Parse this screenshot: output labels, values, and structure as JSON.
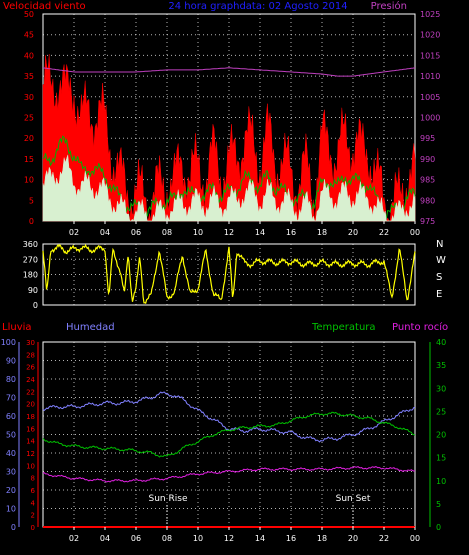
{
  "colors": {
    "background": "#000000",
    "axis": "#ffffff",
    "grid": "#ffffff",
    "wind_speed": "#ff0000",
    "wind_avg": "#00b000",
    "wind_min": "#d8f0d0",
    "pressure": "#c040c0",
    "direction": "#ffff00",
    "rain": "#ff0000",
    "humidity": "#8080ff",
    "temperature": "#00c000",
    "dewpoint": "#e020e0",
    "title": "#2020ff"
  },
  "chart_data": [
    {
      "type": "line",
      "title": "24 hora graphdata: 02 Agosto 2014",
      "left_axis_label": "Velocidad viento",
      "right_axis_label": "Presión",
      "x_ticks": [
        "02",
        "04",
        "06",
        "08",
        "10",
        "12",
        "14",
        "16",
        "18",
        "20",
        "22",
        "00"
      ],
      "xlim": [
        0,
        24
      ],
      "y_left": {
        "ticks": [
          0,
          5,
          10,
          15,
          20,
          25,
          30,
          35,
          40,
          45,
          50
        ],
        "ylim": [
          0,
          50
        ]
      },
      "y_right": {
        "ticks": [
          975,
          980,
          985,
          990,
          995,
          1000,
          1005,
          1010,
          1015,
          1020,
          1025
        ],
        "ylim": [
          975,
          1025
        ]
      },
      "grid": true,
      "series": [
        {
          "name": "Velocidad viento",
          "axis": "left",
          "style": "fill",
          "x": [
            0,
            0.5,
            1,
            1.5,
            2,
            2.5,
            3,
            3.5,
            4,
            4.5,
            5,
            5.5,
            6,
            6.5,
            7,
            7.5,
            8,
            8.5,
            9,
            9.5,
            10,
            10.5,
            11,
            11.5,
            12,
            12.5,
            13,
            13.5,
            14,
            14.5,
            15,
            15.5,
            16,
            16.5,
            17,
            17.5,
            18,
            18.5,
            19,
            19.5,
            20,
            20.5,
            21,
            21.5,
            22,
            22.5,
            23,
            23.5
          ],
          "values": [
            33,
            32,
            35,
            30,
            33,
            24,
            27,
            26,
            24,
            16,
            10,
            8,
            6,
            7,
            5,
            8,
            10,
            9,
            15,
            11,
            13,
            11,
            16,
            12,
            14,
            16,
            20,
            19,
            15,
            21,
            15,
            14,
            12,
            9,
            13,
            7,
            19,
            19,
            15,
            21,
            19,
            17,
            18,
            10,
            6,
            4,
            5,
            12
          ]
        },
        {
          "name": "Velocidad media",
          "axis": "left",
          "style": "line",
          "x": [
            0,
            0.5,
            1,
            1.5,
            2,
            2.5,
            3,
            3.5,
            4,
            4.5,
            5,
            5.5,
            6,
            6.5,
            7,
            7.5,
            8,
            8.5,
            9,
            9.5,
            10,
            10.5,
            11,
            11.5,
            12,
            12.5,
            13,
            13.5,
            14,
            14.5,
            15,
            15.5,
            16,
            16.5,
            17,
            17.5,
            18,
            18.5,
            19,
            19.5,
            20,
            20.5,
            21,
            21.5,
            22,
            22.5,
            23,
            23.5
          ],
          "values": [
            14,
            15,
            18,
            19,
            16,
            12,
            13,
            12,
            11,
            8,
            5,
            4,
            3,
            3,
            3,
            4,
            5,
            5,
            8,
            6,
            7,
            6,
            8,
            6,
            7,
            8,
            10,
            10,
            8,
            11,
            8,
            7,
            6,
            5,
            6,
            4,
            9,
            10,
            8,
            11,
            10,
            9,
            9,
            5,
            3,
            2,
            3,
            6
          ]
        },
        {
          "name": "Velocidad mínima",
          "axis": "left",
          "style": "fill",
          "x": [
            0,
            0.5,
            1,
            1.5,
            2,
            2.5,
            3,
            3.5,
            4,
            4.5,
            5,
            5.5,
            6,
            6.5,
            7,
            7.5,
            8,
            8.5,
            9,
            9.5,
            10,
            10.5,
            11,
            11.5,
            12,
            12.5,
            13,
            13.5,
            14,
            14.5,
            15,
            15.5,
            16,
            16.5,
            17,
            17.5,
            18,
            18.5,
            19,
            19.5,
            20,
            20.5,
            21,
            21.5,
            22,
            22.5,
            23,
            23.5
          ],
          "values": [
            9,
            10,
            12,
            13,
            10,
            8,
            9,
            8,
            7,
            5,
            3,
            2,
            2,
            2,
            1,
            2,
            3,
            3,
            5,
            4,
            5,
            4,
            5,
            4,
            5,
            5,
            7,
            7,
            5,
            7,
            5,
            5,
            4,
            3,
            4,
            2,
            6,
            7,
            5,
            7,
            6,
            6,
            6,
            3,
            2,
            1,
            2,
            4
          ]
        },
        {
          "name": "Presión",
          "axis": "right",
          "style": "line",
          "x": [
            0,
            2,
            4,
            6,
            8,
            10,
            12,
            14,
            16,
            18,
            19,
            20,
            22,
            24
          ],
          "values": [
            1012,
            1011,
            1011,
            1011,
            1011.5,
            1011.5,
            1012,
            1011.5,
            1011,
            1010.5,
            1010,
            1010,
            1011,
            1012
          ]
        }
      ]
    },
    {
      "type": "line",
      "title": "",
      "right_labels": [
        "N",
        "W",
        "S",
        "E",
        "N"
      ],
      "x_ticks": [
        "02",
        "04",
        "06",
        "08",
        "10",
        "12",
        "14",
        "16",
        "18",
        "20",
        "22",
        "00"
      ],
      "xlim": [
        0,
        24
      ],
      "y_left": {
        "ticks": [
          0,
          90,
          180,
          270,
          360
        ],
        "ylim": [
          0,
          360
        ]
      },
      "grid": true,
      "series": [
        {
          "name": "Dirección viento",
          "axis": "left",
          "style": "line",
          "x": [
            0,
            0.25,
            0.5,
            1,
            1.5,
            2,
            2.5,
            3,
            3.5,
            4,
            4.25,
            4.5,
            5,
            5.25,
            5.5,
            5.75,
            6,
            6.25,
            6.5,
            7,
            7.5,
            8,
            8.5,
            9,
            9.5,
            10,
            10.5,
            11,
            11.5,
            12,
            12.25,
            12.5,
            13,
            13.5,
            14,
            15,
            16,
            17,
            18,
            19,
            20,
            21,
            22,
            22.5,
            23,
            23.5,
            24
          ],
          "values": [
            320,
            60,
            330,
            340,
            320,
            330,
            340,
            325,
            330,
            335,
            40,
            320,
            200,
            60,
            300,
            30,
            100,
            280,
            20,
            60,
            330,
            40,
            80,
            300,
            60,
            100,
            320,
            60,
            30,
            330,
            20,
            320,
            250,
            240,
            260,
            250,
            255,
            240,
            250,
            240,
            245,
            240,
            260,
            40,
            330,
            30,
            300
          ]
        }
      ]
    },
    {
      "type": "line",
      "title": "",
      "legend_labels": [
        "Lluvia",
        "Humedad",
        "Temperatura",
        "Punto rocío"
      ],
      "x_ticks": [
        "02",
        "04",
        "06",
        "08",
        "10",
        "12",
        "14",
        "16",
        "18",
        "20",
        "22",
        "00"
      ],
      "xlim": [
        0,
        24
      ],
      "y_left_humidity": {
        "ticks": [
          0,
          10,
          20,
          30,
          40,
          50,
          60,
          70,
          80,
          90,
          100
        ],
        "ylim": [
          0,
          100
        ]
      },
      "y_left_rain": {
        "ticks": [
          0,
          2,
          4,
          6,
          8,
          10,
          12,
          14,
          16,
          18,
          20,
          22,
          24,
          26,
          28,
          30
        ],
        "ylim": [
          0,
          30
        ]
      },
      "y_right": {
        "ticks": [
          0,
          5,
          10,
          15,
          20,
          25,
          30,
          35,
          40
        ],
        "ylim": [
          0,
          40
        ]
      },
      "annotations": [
        {
          "label": "Sun Rise",
          "x": 8
        },
        {
          "label": "Sun Set",
          "x": 20
        }
      ],
      "grid": true,
      "series": [
        {
          "name": "Lluvia",
          "axis": "left_rain",
          "x": [
            0,
            24
          ],
          "values": [
            0,
            0
          ]
        },
        {
          "name": "Humedad",
          "axis": "left_humidity",
          "x": [
            0,
            1,
            2,
            3,
            4,
            5,
            6,
            7,
            7.5,
            8,
            8.5,
            9,
            10,
            11,
            12,
            13,
            14,
            15,
            16,
            17,
            18,
            19,
            20,
            21,
            22,
            23,
            24
          ],
          "values": [
            64,
            65,
            65,
            66,
            67,
            67,
            68,
            70,
            72,
            72,
            71,
            69,
            63,
            58,
            53,
            52,
            53,
            52,
            51,
            48,
            47,
            48,
            50,
            53,
            57,
            61,
            65
          ]
        },
        {
          "name": "Temperatura",
          "axis": "right",
          "x": [
            0,
            1,
            2,
            3,
            4,
            5,
            6,
            7,
            7.5,
            8,
            8.5,
            9,
            10,
            11,
            12,
            13,
            14,
            15,
            16,
            17,
            18,
            19,
            20,
            21,
            22,
            23,
            24
          ],
          "values": [
            19,
            18,
            17.5,
            17.2,
            17,
            16.8,
            16.5,
            16,
            15.5,
            15.2,
            16,
            17,
            18.5,
            20,
            21,
            21.5,
            21.8,
            22,
            23,
            24,
            24.5,
            24.5,
            24,
            23.5,
            22.5,
            21.5,
            20
          ]
        },
        {
          "name": "Punto rocío",
          "axis": "right",
          "x": [
            0,
            2,
            4,
            6,
            8,
            10,
            12,
            14,
            16,
            18,
            20,
            22,
            24
          ],
          "values": [
            11.5,
            10.5,
            10,
            10,
            10.5,
            11.5,
            12,
            12.5,
            12.5,
            12.5,
            12.8,
            12.8,
            12
          ]
        }
      ]
    }
  ]
}
